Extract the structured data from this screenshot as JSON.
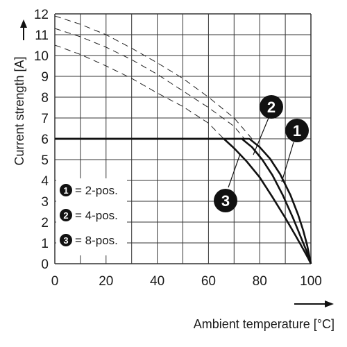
{
  "chart_data": {
    "type": "line",
    "title": "",
    "xlabel": "Ambient temperature [°C]",
    "ylabel": "Current strength [A]",
    "xlim": [
      0,
      100
    ],
    "ylim": [
      0,
      12
    ],
    "x_ticks": [
      "0",
      "20",
      "40",
      "60",
      "80",
      "100"
    ],
    "y_ticks": [
      "0",
      "1",
      "2",
      "3",
      "4",
      "5",
      "6",
      "7",
      "8",
      "9",
      "10",
      "11",
      "12"
    ],
    "grid": true,
    "legend_position": "bottom-left",
    "series": [
      {
        "name": "2-pos.",
        "marker_label": "1",
        "style": "solid",
        "points": [
          [
            0,
            6
          ],
          [
            76,
            6
          ],
          [
            80,
            5.6
          ],
          [
            84,
            5.05
          ],
          [
            88,
            4.3
          ],
          [
            92,
            3.3
          ],
          [
            95,
            2.35
          ],
          [
            97,
            1.6
          ],
          [
            98.5,
            0.9
          ],
          [
            99.5,
            0.3
          ],
          [
            100,
            0
          ]
        ]
      },
      {
        "name": "4-pos.",
        "marker_label": "2",
        "style": "solid",
        "points": [
          [
            0,
            6
          ],
          [
            73,
            6
          ],
          [
            77,
            5.6
          ],
          [
            81,
            5.0
          ],
          [
            85,
            4.25
          ],
          [
            89,
            3.3
          ],
          [
            93,
            2.2
          ],
          [
            96,
            1.3
          ],
          [
            98,
            0.7
          ],
          [
            99.5,
            0.2
          ],
          [
            100,
            0
          ]
        ]
      },
      {
        "name": "8-pos.",
        "marker_label": "3",
        "style": "solid",
        "points": [
          [
            0,
            6
          ],
          [
            66,
            6
          ],
          [
            70,
            5.55
          ],
          [
            75,
            4.9
          ],
          [
            80,
            4.15
          ],
          [
            85,
            3.2
          ],
          [
            90,
            2.2
          ],
          [
            94,
            1.35
          ],
          [
            97,
            0.7
          ],
          [
            99,
            0.25
          ],
          [
            100,
            0
          ]
        ]
      }
    ],
    "dashed_curves": [
      {
        "series": "2-pos.",
        "points": [
          [
            0,
            11.9
          ],
          [
            10,
            11.5
          ],
          [
            20,
            11.0
          ],
          [
            30,
            10.35
          ],
          [
            40,
            9.65
          ],
          [
            50,
            8.9
          ],
          [
            60,
            8.0
          ],
          [
            70,
            7.0
          ],
          [
            77,
            6.0
          ]
        ]
      },
      {
        "series": "4-pos.",
        "points": [
          [
            0,
            11.3
          ],
          [
            10,
            10.9
          ],
          [
            20,
            10.4
          ],
          [
            30,
            9.8
          ],
          [
            40,
            9.1
          ],
          [
            50,
            8.3
          ],
          [
            60,
            7.5
          ],
          [
            70,
            6.6
          ],
          [
            74,
            6.0
          ]
        ]
      },
      {
        "series": "8-pos.",
        "points": [
          [
            0,
            10.5
          ],
          [
            10,
            10.05
          ],
          [
            20,
            9.5
          ],
          [
            30,
            8.9
          ],
          [
            40,
            8.2
          ],
          [
            50,
            7.55
          ],
          [
            60,
            6.75
          ],
          [
            66,
            6.0
          ]
        ]
      }
    ],
    "legend": [
      {
        "marker_label": "1",
        "text": "= 2-pos."
      },
      {
        "marker_label": "2",
        "text": "= 4-pos."
      },
      {
        "marker_label": "3",
        "text": "= 8-pos."
      }
    ],
    "colors": {
      "curve": "#111111",
      "grid": "#333333",
      "badge": "#111111"
    }
  }
}
